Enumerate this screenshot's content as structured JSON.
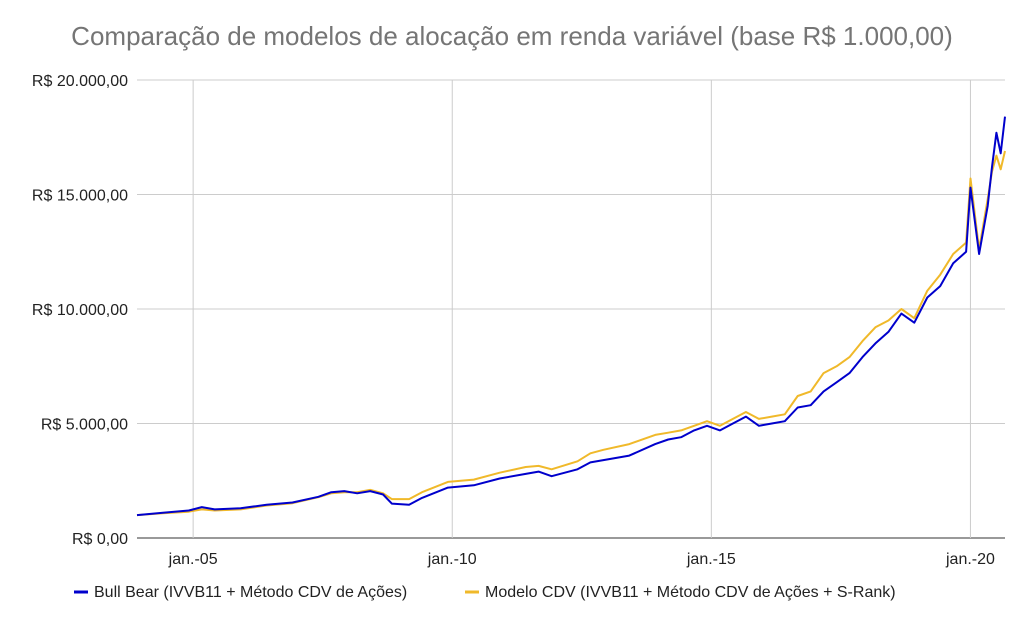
{
  "chart_data": {
    "type": "line",
    "title": "Comparação de modelos de alocação em renda variável (base R$ 1.000,00)",
    "xlabel": "",
    "ylabel": "",
    "ylim": [
      0,
      20000
    ],
    "yticks": [
      0,
      5000,
      10000,
      15000,
      20000
    ],
    "ytick_labels": [
      "R$ 0,00",
      "R$ 5.000,00",
      "R$ 10.000,00",
      "R$ 15.000,00",
      "R$ 20.000,00"
    ],
    "xlim": [
      "2003-12",
      "2020-09"
    ],
    "xticks": [
      "2005-01",
      "2010-01",
      "2015-01",
      "2020-01"
    ],
    "xtick_labels": [
      "jan.-05",
      "jan.-10",
      "jan.-15",
      "jan.-20"
    ],
    "grid": true,
    "legend_position": "bottom",
    "series": [
      {
        "name": "Bull Bear (IVVB11 + Método CDV de Ações)",
        "color": "#0000cc",
        "points": [
          [
            "2003-12",
            1000
          ],
          [
            "2004-06",
            1100
          ],
          [
            "2004-12",
            1200
          ],
          [
            "2005-03",
            1350
          ],
          [
            "2005-06",
            1250
          ],
          [
            "2005-12",
            1300
          ],
          [
            "2006-06",
            1450
          ],
          [
            "2006-12",
            1550
          ],
          [
            "2007-06",
            1800
          ],
          [
            "2007-09",
            2000
          ],
          [
            "2007-12",
            2050
          ],
          [
            "2008-03",
            1950
          ],
          [
            "2008-06",
            2050
          ],
          [
            "2008-09",
            1900
          ],
          [
            "2008-11",
            1500
          ],
          [
            "2009-03",
            1450
          ],
          [
            "2009-06",
            1750
          ],
          [
            "2009-12",
            2200
          ],
          [
            "2010-06",
            2300
          ],
          [
            "2010-12",
            2600
          ],
          [
            "2011-06",
            2800
          ],
          [
            "2011-09",
            2900
          ],
          [
            "2011-12",
            2700
          ],
          [
            "2012-06",
            3000
          ],
          [
            "2012-09",
            3300
          ],
          [
            "2012-12",
            3400
          ],
          [
            "2013-06",
            3600
          ],
          [
            "2013-12",
            4100
          ],
          [
            "2014-03",
            4300
          ],
          [
            "2014-06",
            4400
          ],
          [
            "2014-09",
            4700
          ],
          [
            "2014-12",
            4900
          ],
          [
            "2015-03",
            4700
          ],
          [
            "2015-06",
            5000
          ],
          [
            "2015-09",
            5300
          ],
          [
            "2015-12",
            4900
          ],
          [
            "2016-03",
            5000
          ],
          [
            "2016-06",
            5100
          ],
          [
            "2016-09",
            5700
          ],
          [
            "2016-12",
            5800
          ],
          [
            "2017-03",
            6400
          ],
          [
            "2017-06",
            6800
          ],
          [
            "2017-09",
            7200
          ],
          [
            "2017-12",
            7900
          ],
          [
            "2018-03",
            8500
          ],
          [
            "2018-06",
            9000
          ],
          [
            "2018-09",
            9800
          ],
          [
            "2018-12",
            9400
          ],
          [
            "2019-03",
            10500
          ],
          [
            "2019-06",
            11000
          ],
          [
            "2019-09",
            12000
          ],
          [
            "2019-12",
            12500
          ],
          [
            "2020-01",
            15300
          ],
          [
            "2020-03",
            12400
          ],
          [
            "2020-05",
            14500
          ],
          [
            "2020-06",
            16200
          ],
          [
            "2020-07",
            17700
          ],
          [
            "2020-08",
            16800
          ],
          [
            "2020-09",
            18400
          ]
        ]
      },
      {
        "name": "Modelo CDV (IVVB11 + Método CDV de Ações + S-Rank)",
        "color": "#f0b92a",
        "points": [
          [
            "2003-12",
            1000
          ],
          [
            "2004-06",
            1080
          ],
          [
            "2004-12",
            1150
          ],
          [
            "2005-03",
            1250
          ],
          [
            "2005-06",
            1200
          ],
          [
            "2005-12",
            1250
          ],
          [
            "2006-06",
            1420
          ],
          [
            "2006-12",
            1520
          ],
          [
            "2007-06",
            1780
          ],
          [
            "2007-09",
            1950
          ],
          [
            "2007-12",
            2000
          ],
          [
            "2008-03",
            2000
          ],
          [
            "2008-06",
            2100
          ],
          [
            "2008-09",
            1950
          ],
          [
            "2008-11",
            1700
          ],
          [
            "2009-03",
            1700
          ],
          [
            "2009-06",
            2000
          ],
          [
            "2009-12",
            2450
          ],
          [
            "2010-06",
            2550
          ],
          [
            "2010-12",
            2850
          ],
          [
            "2011-06",
            3100
          ],
          [
            "2011-09",
            3150
          ],
          [
            "2011-12",
            3000
          ],
          [
            "2012-06",
            3350
          ],
          [
            "2012-09",
            3700
          ],
          [
            "2012-12",
            3850
          ],
          [
            "2013-06",
            4100
          ],
          [
            "2013-12",
            4500
          ],
          [
            "2014-03",
            4600
          ],
          [
            "2014-06",
            4700
          ],
          [
            "2014-09",
            4900
          ],
          [
            "2014-12",
            5100
          ],
          [
            "2015-03",
            4900
          ],
          [
            "2015-06",
            5200
          ],
          [
            "2015-09",
            5500
          ],
          [
            "2015-12",
            5200
          ],
          [
            "2016-03",
            5300
          ],
          [
            "2016-06",
            5400
          ],
          [
            "2016-09",
            6200
          ],
          [
            "2016-12",
            6400
          ],
          [
            "2017-03",
            7200
          ],
          [
            "2017-06",
            7500
          ],
          [
            "2017-09",
            7900
          ],
          [
            "2017-12",
            8600
          ],
          [
            "2018-03",
            9200
          ],
          [
            "2018-06",
            9500
          ],
          [
            "2018-09",
            10000
          ],
          [
            "2018-12",
            9600
          ],
          [
            "2019-03",
            10800
          ],
          [
            "2019-06",
            11500
          ],
          [
            "2019-09",
            12400
          ],
          [
            "2019-12",
            12900
          ],
          [
            "2020-01",
            15700
          ],
          [
            "2020-03",
            12600
          ],
          [
            "2020-05",
            14800
          ],
          [
            "2020-06",
            16000
          ],
          [
            "2020-07",
            16700
          ],
          [
            "2020-08",
            16100
          ],
          [
            "2020-09",
            16900
          ]
        ]
      }
    ]
  }
}
